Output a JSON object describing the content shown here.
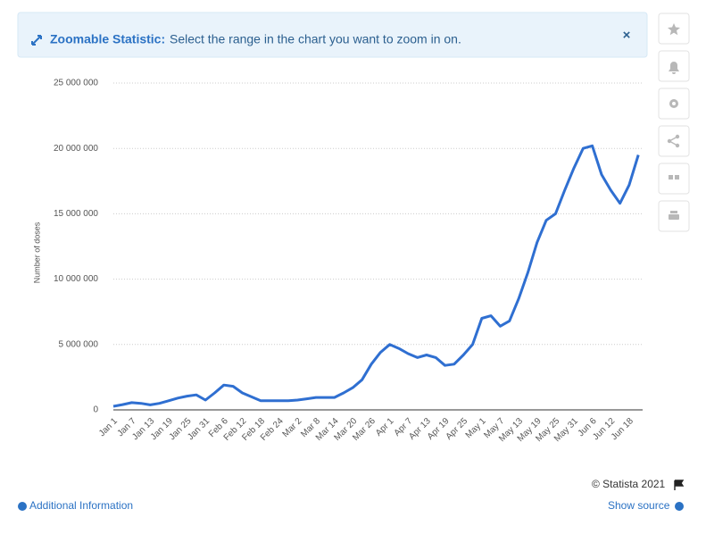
{
  "banner": {
    "title": "Zoomable Statistic:",
    "text": "Select the range in the chart you want to zoom in on.",
    "close": "×"
  },
  "chart_data": {
    "type": "line",
    "ylabel": "Number of doses",
    "categories": [
      "Jan 1",
      null,
      "Jan 7",
      null,
      "Jan 13",
      null,
      "Jan 19",
      null,
      "Jan 25",
      null,
      "Jan 31",
      null,
      "Feb 6",
      null,
      "Feb 12",
      null,
      "Feb 18",
      null,
      "Feb 24",
      null,
      "Mar 2",
      null,
      "Mar 8",
      null,
      "Mar 14",
      null,
      "Mar 20",
      null,
      "Mar 26",
      null,
      "Apr 1",
      null,
      "Apr 7",
      null,
      "Apr 13",
      null,
      "Apr 19",
      null,
      "Apr 25",
      null,
      "May 1",
      null,
      "May 7",
      null,
      "May 13",
      null,
      "May 19",
      null,
      "May 25",
      null,
      "May 31",
      null,
      "Jun 6",
      null,
      "Jun 12",
      null,
      "Jun 18",
      null
    ],
    "values": [
      270000,
      400000,
      550000,
      500000,
      380000,
      500000,
      700000,
      900000,
      1050000,
      1150000,
      750000,
      1300000,
      1900000,
      1800000,
      1300000,
      1000000,
      700000,
      700000,
      700000,
      700000,
      750000,
      850000,
      950000,
      950000,
      950000,
      1300000,
      1700000,
      2300000,
      3500000,
      4400000,
      5000000,
      4700000,
      4300000,
      4000000,
      4200000,
      4000000,
      3400000,
      3500000,
      4200000,
      5000000,
      7000000,
      7200000,
      6400000,
      6800000,
      8500000,
      10500000,
      12800000,
      14500000,
      15000000,
      16800000,
      18500000,
      20000000,
      20200000,
      18000000,
      16800000,
      15800000,
      17200000,
      19500000
    ],
    "color": "#2f6fd1",
    "ylim": [
      0,
      25000000
    ],
    "yticks": [
      0,
      {
        "value": 5000000,
        "label": "5 000 000"
      },
      {
        "value": 10000000,
        "label": "10 000 000"
      },
      {
        "value": 15000000,
        "label": "15 000 000"
      },
      {
        "value": 20000000,
        "label": "20 000 000"
      },
      {
        "value": 25000000,
        "label": "25 000 000"
      }
    ],
    "grid": true
  },
  "footer": {
    "copyright": "© Statista 2021",
    "additional_info": "Additional Information",
    "show_source": "Show source"
  }
}
